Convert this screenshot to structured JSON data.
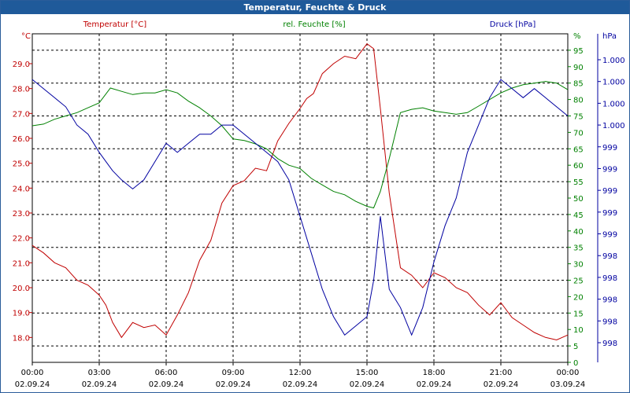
{
  "window": {
    "title": "Temperatur, Feuchte & Druck"
  },
  "colors": {
    "temperature": "#c00000",
    "humidity": "#008000",
    "pressure": "#0000a0",
    "grid": "#000000",
    "title_bg": "#1f5a9a"
  },
  "chart_data": {
    "type": "line",
    "title": "Temperatur, Feuchte & Druck",
    "x_ticks": [
      {
        "time": "00:00",
        "date": "02.09.24"
      },
      {
        "time": "03:00",
        "date": "02.09.24"
      },
      {
        "time": "06:00",
        "date": "02.09.24"
      },
      {
        "time": "09:00",
        "date": "02.09.24"
      },
      {
        "time": "12:00",
        "date": "02.09.24"
      },
      {
        "time": "15:00",
        "date": "02.09.24"
      },
      {
        "time": "18:00",
        "date": "02.09.24"
      },
      {
        "time": "21:00",
        "date": "02.09.24"
      },
      {
        "time": "00:00",
        "date": "03.09.24"
      }
    ],
    "x_range_hours": [
      0,
      24
    ],
    "axes": {
      "temperature": {
        "legend": "Temperatur [°C]",
        "unit": "°C",
        "range": [
          17.0,
          30.2
        ],
        "tick_labels": [
          "18.0",
          "19.0",
          "20.0",
          "21.0",
          "22.0",
          "23.0",
          "24.0",
          "25.0",
          "26.0",
          "27.0",
          "28.0",
          "29.0"
        ]
      },
      "humidity": {
        "legend": "rel. Feuchte [%]",
        "unit": "%",
        "range": [
          0,
          100
        ],
        "tick_labels": [
          "0",
          "5",
          "10",
          "15",
          "20",
          "25",
          "30",
          "35",
          "40",
          "45",
          "50",
          "55",
          "60",
          "65",
          "70",
          "75",
          "80",
          "85",
          "90",
          "95"
        ]
      },
      "pressure": {
        "legend": "Druck [hPa]",
        "unit": "hPa",
        "tick_labels": [
          "1.000",
          "1.000",
          "1.000",
          "1.000",
          "999",
          "999",
          "999",
          "999",
          "999",
          "998",
          "998",
          "998",
          "998",
          "998"
        ]
      }
    },
    "series": [
      {
        "name": "Temperatur [°C]",
        "axis": "temperature",
        "x": [
          0,
          0.5,
          1,
          1.5,
          2,
          2.5,
          3,
          3.3,
          3.6,
          4,
          4.5,
          5,
          5.5,
          6,
          6.5,
          7,
          7.5,
          8,
          8.5,
          9,
          9.5,
          10,
          10.5,
          11,
          11.5,
          12,
          12.3,
          12.6,
          13,
          13.5,
          14,
          14.5,
          15,
          15.3,
          15.6,
          16,
          16.5,
          17,
          17.5,
          18,
          18.5,
          19,
          19.5,
          20,
          20.5,
          21,
          21.5,
          22,
          22.5,
          23,
          23.5,
          24
        ],
        "values": [
          21.7,
          21.4,
          21.0,
          20.8,
          20.3,
          20.1,
          19.7,
          19.3,
          18.6,
          18.0,
          18.6,
          18.4,
          18.5,
          18.1,
          18.9,
          19.8,
          21.1,
          21.9,
          23.4,
          24.1,
          24.3,
          24.8,
          24.7,
          25.9,
          26.6,
          27.2,
          27.6,
          27.8,
          28.6,
          29.0,
          29.3,
          29.2,
          29.8,
          29.6,
          27.2,
          23.8,
          20.8,
          20.5,
          20.0,
          20.6,
          20.4,
          20.0,
          19.8,
          19.3,
          18.9,
          19.4,
          18.8,
          18.5,
          18.2,
          18.0,
          17.9,
          18.1
        ]
      },
      {
        "name": "rel. Feuchte [%]",
        "axis": "humidity",
        "x": [
          0,
          0.5,
          1,
          1.5,
          2,
          2.5,
          3,
          3.5,
          4,
          4.5,
          5,
          5.5,
          6,
          6.5,
          7,
          7.5,
          8,
          8.5,
          9,
          9.5,
          10,
          10.5,
          11,
          11.5,
          12,
          12.5,
          13,
          13.5,
          14,
          14.5,
          15,
          15.3,
          15.6,
          16,
          16.5,
          17,
          17.5,
          18,
          18.5,
          19,
          19.5,
          20,
          20.5,
          21,
          21.5,
          22,
          22.5,
          23,
          23.5,
          24
        ],
        "values": [
          72.0,
          72.5,
          74.0,
          75.0,
          76.0,
          77.5,
          79.0,
          83.5,
          82.5,
          81.5,
          82.0,
          82.0,
          83.0,
          82.0,
          79.5,
          77.5,
          75.0,
          72.0,
          68.0,
          67.5,
          66.5,
          65.0,
          62.0,
          60.0,
          59.0,
          56.0,
          54.0,
          52.0,
          51.0,
          49.0,
          47.5,
          47.0,
          52.0,
          62.0,
          76.0,
          77.0,
          77.5,
          76.5,
          76.0,
          75.5,
          76.0,
          78.0,
          80.0,
          82.0,
          83.5,
          84.5,
          85.0,
          85.5,
          85.0,
          83.0
        ]
      },
      {
        "name": "Druck [hPa]",
        "axis": "pressure",
        "x": [
          0,
          0.5,
          1,
          1.5,
          2,
          2.5,
          3,
          3.3,
          3.6,
          4,
          4.5,
          5,
          5.5,
          6,
          6.5,
          7,
          7.5,
          8,
          8.5,
          9,
          9.5,
          10,
          10.5,
          11,
          11.5,
          12,
          12.5,
          13,
          13.5,
          14,
          14.5,
          15,
          15.3,
          15.6,
          16,
          16.5,
          17,
          17.5,
          18,
          18.5,
          19,
          19.5,
          20,
          20.5,
          21,
          21.5,
          22,
          22.5,
          23,
          23.5,
          24
        ],
        "values": [
          1000.4,
          1000.3,
          1000.2,
          1000.1,
          999.9,
          999.8,
          999.6,
          999.5,
          999.4,
          999.3,
          999.2,
          999.3,
          999.5,
          999.7,
          999.6,
          999.7,
          999.8,
          999.8,
          999.9,
          999.9,
          999.8,
          999.7,
          999.6,
          999.5,
          999.3,
          998.9,
          998.5,
          998.1,
          997.8,
          997.6,
          997.7,
          997.8,
          998.2,
          998.9,
          998.1,
          997.9,
          997.6,
          997.9,
          998.4,
          998.8,
          999.1,
          999.6,
          999.9,
          1000.2,
          1000.4,
          1000.3,
          1000.2,
          1000.3,
          1000.2,
          1000.1,
          1000.0
        ]
      }
    ],
    "grid": true,
    "legend": "top"
  }
}
